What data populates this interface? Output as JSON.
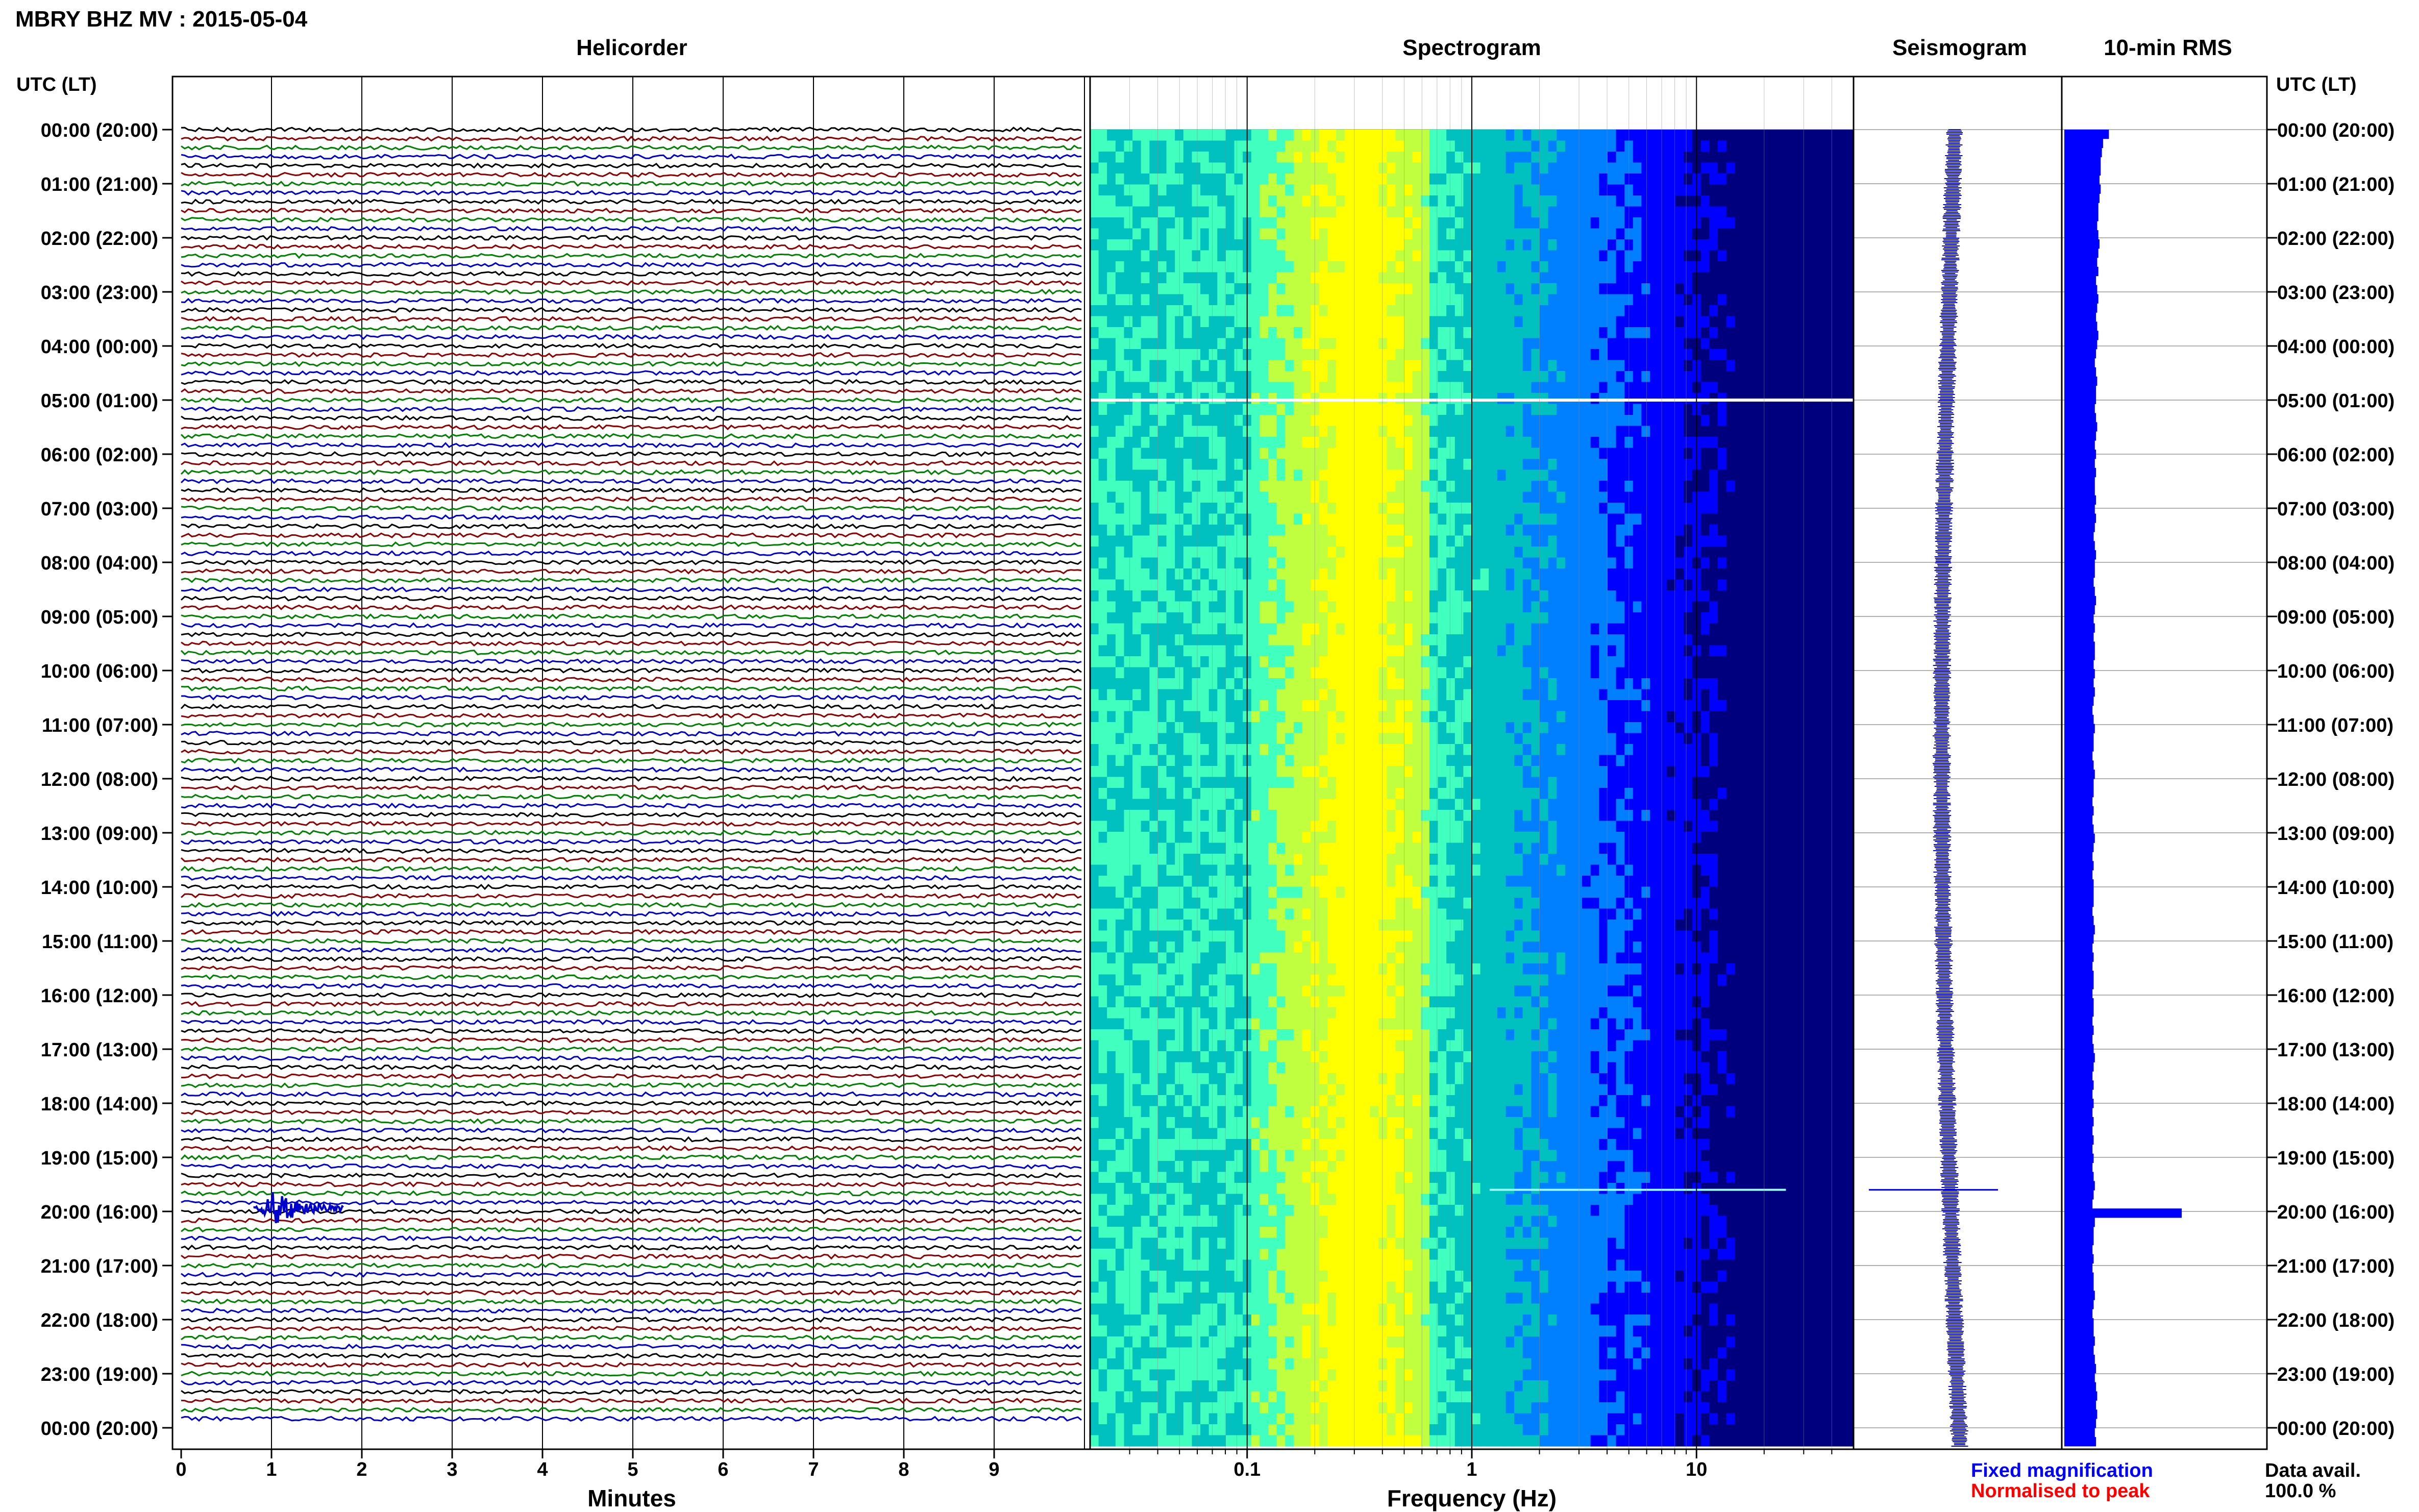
{
  "header": {
    "title": "MBRY BHZ MV : 2015-05-04",
    "utc_lt_left": "UTC (LT)",
    "utc_lt_right": "UTC (LT)"
  },
  "panels": {
    "helicorder": "Helicorder",
    "spectrogram": "Spectrogram",
    "seismogram": "Seismogram",
    "rms": "10-min RMS"
  },
  "time_labels": [
    "00:00 (20:00)",
    "01:00 (21:00)",
    "02:00 (22:00)",
    "03:00 (23:00)",
    "04:00 (00:00)",
    "05:00 (01:00)",
    "06:00 (02:00)",
    "07:00 (03:00)",
    "08:00 (04:00)",
    "09:00 (05:00)",
    "10:00 (06:00)",
    "11:00 (07:00)",
    "12:00 (08:00)",
    "13:00 (09:00)",
    "14:00 (10:00)",
    "15:00 (11:00)",
    "16:00 (12:00)",
    "17:00 (13:00)",
    "18:00 (14:00)",
    "19:00 (15:00)",
    "20:00 (16:00)",
    "21:00 (17:00)",
    "22:00 (18:00)",
    "23:00 (19:00)",
    "00:00 (20:00)"
  ],
  "x_axes": {
    "minutes_label": "Minutes",
    "minutes_ticks": [
      "0",
      "1",
      "2",
      "3",
      "4",
      "5",
      "6",
      "7",
      "8",
      "9"
    ],
    "frequency_label": "Frequency (Hz)",
    "frequency_ticks": [
      "0.1",
      "1",
      "10"
    ]
  },
  "legend": {
    "fixed": "Fixed magnification",
    "normalised": "Normalised to peak",
    "data_avail_label": "Data avail.",
    "data_avail_value": "100.0 %"
  },
  "colors": {
    "helicorder_traces": [
      "#000000",
      "#8b0000",
      "#008000",
      "#0000cd"
    ],
    "fixed": "#0000ff",
    "normalised": "#ff0000",
    "rms_fill": "#0000ff",
    "grid": "#000000"
  },
  "chart_data": [
    {
      "type": "line",
      "title": "Helicorder",
      "xlabel": "Minutes",
      "ylabel": "UTC (LT)",
      "xlim": [
        0,
        10
      ],
      "rows_per_hour": 6,
      "hours": 24,
      "event": {
        "hour": 19,
        "row": 5,
        "minute_start": 0.8,
        "minute_peak": 1.0,
        "amplitude": "large"
      },
      "grid": true
    },
    {
      "type": "heatmap",
      "title": "Spectrogram",
      "xlabel": "Frequency (Hz)",
      "xscale": "log",
      "xlim": [
        0.02,
        50
      ],
      "ylabel": "UTC (LT)",
      "peak_energy_band_hz": [
        0.2,
        0.5
      ],
      "notes": [
        "gap at 05:00",
        "event near 19:40"
      ],
      "colormap": [
        "#00007f",
        "#0000ff",
        "#0080ff",
        "#00c0c0",
        "#40ffbf",
        "#c0ff40",
        "#ffff00"
      ]
    },
    {
      "type": "line",
      "title": "Seismogram",
      "series": [
        {
          "name": "",
          "values": []
        }
      ],
      "event_hour": 19.6
    },
    {
      "type": "bar",
      "title": "10-min RMS",
      "orientation": "horizontal",
      "values_relative": [
        0.38,
        0.33,
        0.32,
        0.31,
        0.31,
        0.3,
        0.31,
        0.3,
        0.29,
        0.29,
        0.28,
        0.29,
        0.3,
        0.29,
        0.28,
        0.29,
        0.27,
        0.28,
        0.29,
        0.28,
        0.27,
        0.28,
        0.29,
        0.28,
        0.27,
        0.26,
        0.27,
        0.28,
        0.27,
        0.27,
        0.26,
        0.27,
        0.28,
        0.27,
        0.26,
        0.27,
        0.26,
        0.27,
        0.26,
        0.26,
        0.27,
        0.26,
        0.27,
        0.26,
        0.25,
        0.26,
        0.27,
        0.26,
        0.26,
        0.25,
        0.26,
        0.27,
        0.26,
        0.25,
        0.26,
        0.25,
        0.26,
        0.26,
        0.25,
        0.26,
        0.25,
        0.26,
        0.25,
        0.24,
        0.25,
        0.26,
        0.25,
        0.25,
        0.24,
        0.25,
        0.26,
        0.25,
        0.25,
        0.24,
        0.25,
        0.24,
        0.25,
        0.26,
        0.25,
        0.24,
        0.25,
        0.24,
        0.25,
        0.25,
        0.25,
        0.24,
        0.25,
        0.26,
        0.25,
        0.24,
        0.25,
        0.24,
        0.25,
        0.25,
        0.24,
        0.25,
        0.25,
        0.24,
        0.25,
        0.24,
        0.25,
        0.26,
        0.25,
        0.24,
        0.25,
        0.24,
        0.25,
        0.24,
        0.25,
        0.24,
        0.25,
        0.24,
        0.25,
        0.24,
        0.25,
        0.26,
        0.25,
        0.24,
        1.0,
        0.26,
        0.25,
        0.25,
        0.24,
        0.25,
        0.24,
        0.25,
        0.25,
        0.26,
        0.25,
        0.24,
        0.25,
        0.25,
        0.26,
        0.25,
        0.26,
        0.27,
        0.26,
        0.27,
        0.28,
        0.27,
        0.28,
        0.27,
        0.26,
        0.27
      ]
    }
  ]
}
